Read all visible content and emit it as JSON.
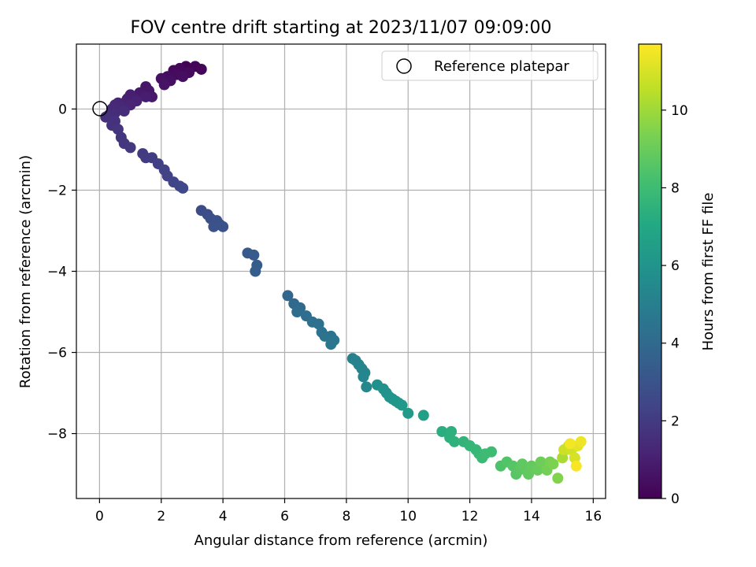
{
  "chart_data": {
    "type": "scatter",
    "title": "FOV centre drift starting at 2023/11/07 09:09:00",
    "xlabel": "Angular distance from reference (arcmin)",
    "ylabel": "Rotation from reference (arcmin)",
    "xlim": [
      -0.75,
      16.4
    ],
    "ylim": [
      -9.6,
      1.6
    ],
    "xticks": [
      "0",
      "2",
      "4",
      "6",
      "8",
      "10",
      "12",
      "14",
      "16"
    ],
    "yticks": [
      "−8",
      "−6",
      "−4",
      "−2",
      "0"
    ],
    "grid": true,
    "legend": {
      "position": "top-right",
      "entries": [
        "Reference platepar"
      ]
    },
    "reference": {
      "x": 0,
      "y": 0,
      "marker": "open-circle"
    },
    "colorbar": {
      "label": "Hours from first FF file",
      "range": [
        0,
        11.7
      ],
      "ticks": [
        "0",
        "2",
        "4",
        "6",
        "8",
        "10"
      ],
      "colormap": "viridis"
    },
    "points": [
      [
        2.8,
        1.05,
        0.05
      ],
      [
        3.1,
        1.05,
        0.1
      ],
      [
        3.3,
        0.98,
        0.15
      ],
      [
        2.6,
        1.0,
        0.2
      ],
      [
        2.4,
        0.95,
        0.25
      ],
      [
        2.9,
        0.9,
        0.3
      ],
      [
        2.5,
        0.85,
        0.35
      ],
      [
        2.2,
        0.8,
        0.4
      ],
      [
        2.7,
        0.8,
        0.45
      ],
      [
        2.3,
        0.7,
        0.5
      ],
      [
        2.0,
        0.75,
        0.55
      ],
      [
        2.1,
        0.6,
        0.6
      ],
      [
        1.5,
        0.55,
        0.7
      ],
      [
        1.6,
        0.45,
        0.75
      ],
      [
        1.3,
        0.4,
        0.8
      ],
      [
        1.7,
        0.3,
        0.85
      ],
      [
        1.1,
        0.3,
        0.9
      ],
      [
        1.5,
        0.3,
        0.95
      ],
      [
        1.0,
        0.35,
        1.0
      ],
      [
        0.9,
        0.25,
        1.05
      ],
      [
        1.2,
        0.2,
        1.1
      ],
      [
        0.8,
        0.15,
        1.15
      ],
      [
        1.0,
        0.1,
        1.2
      ],
      [
        0.6,
        0.15,
        1.25
      ],
      [
        0.7,
        0.05,
        1.3
      ],
      [
        0.5,
        0.1,
        1.35
      ],
      [
        0.4,
        0.0,
        1.4
      ],
      [
        0.8,
        -0.05,
        1.45
      ],
      [
        0.5,
        -0.1,
        1.5
      ],
      [
        0.3,
        -0.15,
        1.55
      ],
      [
        0.2,
        -0.2,
        1.6
      ],
      [
        0.5,
        -0.3,
        1.65
      ],
      [
        0.4,
        -0.4,
        1.7
      ],
      [
        0.6,
        -0.5,
        1.75
      ],
      [
        0.7,
        -0.7,
        1.8
      ],
      [
        0.8,
        -0.85,
        1.85
      ],
      [
        1.0,
        -0.95,
        1.9
      ],
      [
        1.4,
        -1.1,
        2.0
      ],
      [
        1.5,
        -1.2,
        2.05
      ],
      [
        1.7,
        -1.2,
        2.1
      ],
      [
        1.9,
        -1.35,
        2.2
      ],
      [
        2.1,
        -1.5,
        2.25
      ],
      [
        2.2,
        -1.65,
        2.3
      ],
      [
        2.4,
        -1.8,
        2.4
      ],
      [
        2.6,
        -1.9,
        2.45
      ],
      [
        2.7,
        -1.95,
        2.5
      ],
      [
        3.3,
        -2.5,
        2.7
      ],
      [
        3.5,
        -2.6,
        2.75
      ],
      [
        3.6,
        -2.7,
        2.8
      ],
      [
        3.8,
        -2.75,
        2.85
      ],
      [
        3.9,
        -2.85,
        2.9
      ],
      [
        3.7,
        -2.9,
        2.95
      ],
      [
        4.0,
        -2.9,
        3.0
      ],
      [
        4.8,
        -3.55,
        3.3
      ],
      [
        5.0,
        -3.6,
        3.35
      ],
      [
        5.1,
        -3.85,
        3.4
      ],
      [
        5.05,
        -4.0,
        3.45
      ],
      [
        6.1,
        -4.6,
        3.9
      ],
      [
        6.3,
        -4.8,
        4.0
      ],
      [
        6.5,
        -4.9,
        4.05
      ],
      [
        6.4,
        -5.0,
        4.1
      ],
      [
        6.7,
        -5.1,
        4.2
      ],
      [
        6.9,
        -5.25,
        4.3
      ],
      [
        7.1,
        -5.3,
        4.35
      ],
      [
        7.2,
        -5.5,
        4.4
      ],
      [
        7.3,
        -5.6,
        4.45
      ],
      [
        7.5,
        -5.6,
        4.5
      ],
      [
        7.6,
        -5.7,
        4.55
      ],
      [
        7.5,
        -5.8,
        4.6
      ],
      [
        8.2,
        -6.15,
        5.1
      ],
      [
        8.3,
        -6.2,
        5.15
      ],
      [
        8.4,
        -6.3,
        5.2
      ],
      [
        8.5,
        -6.4,
        5.25
      ],
      [
        8.6,
        -6.5,
        5.3
      ],
      [
        8.55,
        -6.6,
        5.35
      ],
      [
        8.65,
        -6.85,
        5.45
      ],
      [
        9.0,
        -6.8,
        5.8
      ],
      [
        9.2,
        -6.9,
        5.9
      ],
      [
        9.3,
        -7.0,
        5.95
      ],
      [
        9.4,
        -7.1,
        6.0
      ],
      [
        9.5,
        -7.15,
        6.05
      ],
      [
        9.6,
        -7.2,
        6.1
      ],
      [
        9.7,
        -7.25,
        6.15
      ],
      [
        9.8,
        -7.3,
        6.2
      ],
      [
        10.0,
        -7.5,
        6.3
      ],
      [
        10.5,
        -7.55,
        6.6
      ],
      [
        11.1,
        -7.95,
        7.3
      ],
      [
        11.4,
        -7.95,
        7.4
      ],
      [
        11.35,
        -8.1,
        7.45
      ],
      [
        11.5,
        -8.2,
        7.5
      ],
      [
        11.8,
        -8.2,
        7.6
      ],
      [
        12.0,
        -8.3,
        7.7
      ],
      [
        12.2,
        -8.4,
        7.75
      ],
      [
        12.3,
        -8.5,
        7.8
      ],
      [
        12.4,
        -8.6,
        7.9
      ],
      [
        12.5,
        -8.5,
        7.95
      ],
      [
        12.7,
        -8.45,
        8.0
      ],
      [
        13.0,
        -8.8,
        8.4
      ],
      [
        13.2,
        -8.7,
        8.5
      ],
      [
        13.4,
        -8.8,
        8.55
      ],
      [
        13.5,
        -9.0,
        8.6
      ],
      [
        13.6,
        -8.9,
        8.7
      ],
      [
        13.7,
        -8.75,
        8.75
      ],
      [
        13.8,
        -8.85,
        8.8
      ],
      [
        13.9,
        -9.0,
        8.85
      ],
      [
        14.0,
        -8.8,
        8.9
      ],
      [
        14.2,
        -8.9,
        9.0
      ],
      [
        14.3,
        -8.7,
        9.1
      ],
      [
        14.5,
        -8.9,
        9.2
      ],
      [
        14.6,
        -8.7,
        9.3
      ],
      [
        14.7,
        -8.75,
        9.4
      ],
      [
        14.85,
        -9.1,
        9.5
      ],
      [
        15.0,
        -8.6,
        10.2
      ],
      [
        15.1,
        -8.4,
        10.4
      ],
      [
        15.2,
        -8.3,
        10.6
      ],
      [
        15.05,
        -8.4,
        10.8
      ],
      [
        15.3,
        -8.4,
        10.9
      ],
      [
        15.4,
        -8.6,
        11.0
      ],
      [
        15.5,
        -8.3,
        11.2
      ],
      [
        15.6,
        -8.2,
        11.4
      ],
      [
        15.25,
        -8.25,
        11.5
      ],
      [
        15.45,
        -8.8,
        11.6
      ]
    ]
  }
}
